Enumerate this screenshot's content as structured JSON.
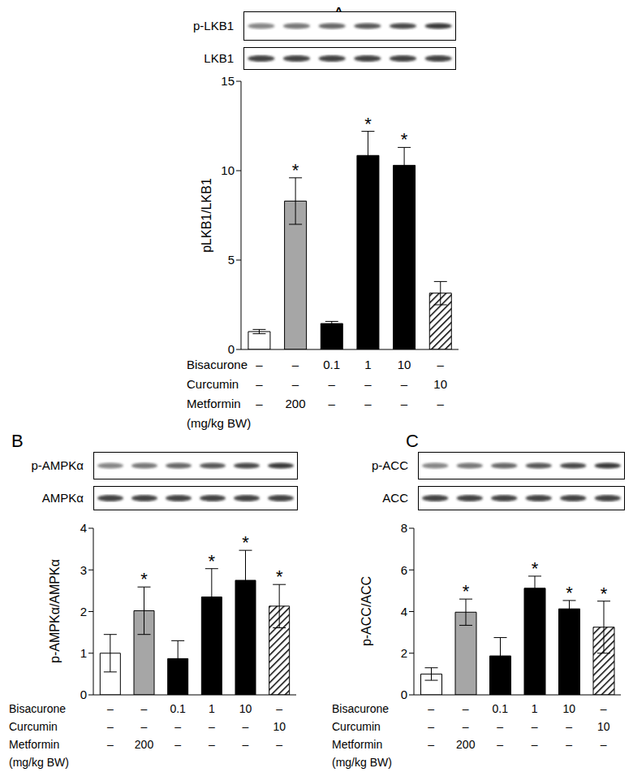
{
  "chart_data": [
    {
      "type": "bar",
      "title": "A",
      "blots": [
        "p-LKB1",
        "LKB1"
      ],
      "y_label": "pLKB1/LKB1",
      "categories": [
        null,
        null,
        null,
        null,
        null,
        null
      ],
      "values": [
        1.0,
        8.3,
        1.45,
        10.85,
        10.3,
        3.15
      ],
      "errors": [
        0.12,
        1.3,
        0.12,
        1.35,
        1.0,
        0.65
      ],
      "significance": [
        null,
        "*",
        null,
        "*",
        "*",
        null
      ],
      "colors": [
        "#ffffff",
        "#a6a6a6",
        "#000000",
        "#000000",
        "#000000",
        "#000000"
      ],
      "ylim": [
        0,
        15
      ],
      "yticks": [
        0,
        5,
        10,
        15
      ],
      "grid": false,
      "treatments": [
        {
          "name": "Bisacurone",
          "values": [
            "–",
            "–",
            "0.1",
            "1",
            "10",
            "–"
          ]
        },
        {
          "name": "Curcumin",
          "values": [
            "–",
            "–",
            "–",
            "–",
            "–",
            "10"
          ]
        },
        {
          "name": "Metformin",
          "values": [
            "–",
            "200",
            "–",
            "–",
            "–",
            "–"
          ]
        }
      ],
      "treatment_unit": "(mg/kg BW)"
    },
    {
      "type": "bar",
      "title": "B",
      "blots": [
        "p-AMPKα",
        "AMPKα"
      ],
      "y_label": "p-AMPKα/AMPKα",
      "categories": [
        null,
        null,
        null,
        null,
        null,
        null
      ],
      "values": [
        1.0,
        2.02,
        0.87,
        2.35,
        2.75,
        2.13
      ],
      "errors": [
        0.45,
        0.57,
        0.43,
        0.68,
        0.72,
        0.52
      ],
      "significance": [
        null,
        "*",
        null,
        "*",
        "*",
        "*"
      ],
      "colors": [
        "#ffffff",
        "#a6a6a6",
        "#000000",
        "#000000",
        "#000000",
        "#000000"
      ],
      "ylim": [
        0,
        4
      ],
      "yticks": [
        0,
        1,
        2,
        3,
        4
      ],
      "grid": false,
      "treatments": [
        {
          "name": "Bisacurone",
          "values": [
            "–",
            "–",
            "0.1",
            "1",
            "10",
            "–"
          ]
        },
        {
          "name": "Curcumin",
          "values": [
            "–",
            "–",
            "–",
            "–",
            "–",
            "10"
          ]
        },
        {
          "name": "Metformin",
          "values": [
            "–",
            "200",
            "–",
            "–",
            "–",
            "–"
          ]
        }
      ],
      "treatment_unit": "(mg/kg BW)"
    },
    {
      "type": "bar",
      "title": "C",
      "blots": [
        "p-ACC",
        "ACC"
      ],
      "y_label": "p-ACC/ACC",
      "categories": [
        null,
        null,
        null,
        null,
        null,
        null
      ],
      "values": [
        1.0,
        3.97,
        1.87,
        5.12,
        4.13,
        3.25
      ],
      "errors": [
        0.3,
        0.63,
        0.88,
        0.58,
        0.4,
        1.25
      ],
      "significance": [
        null,
        "*",
        null,
        "*",
        "*",
        "*"
      ],
      "colors": [
        "#ffffff",
        "#a6a6a6",
        "#000000",
        "#000000",
        "#000000",
        "#000000"
      ],
      "ylim": [
        0,
        8
      ],
      "yticks": [
        0,
        2,
        4,
        6,
        8
      ],
      "grid": false,
      "treatments": [
        {
          "name": "Bisacurone",
          "values": [
            "–",
            "–",
            "0.1",
            "1",
            "10",
            "–"
          ]
        },
        {
          "name": "Curcumin",
          "values": [
            "–",
            "–",
            "–",
            "–",
            "–",
            "10"
          ]
        },
        {
          "name": "Metformin",
          "values": [
            "–",
            "200",
            "–",
            "–",
            "–",
            "–"
          ]
        }
      ],
      "treatment_unit": "(mg/kg BW)"
    }
  ]
}
